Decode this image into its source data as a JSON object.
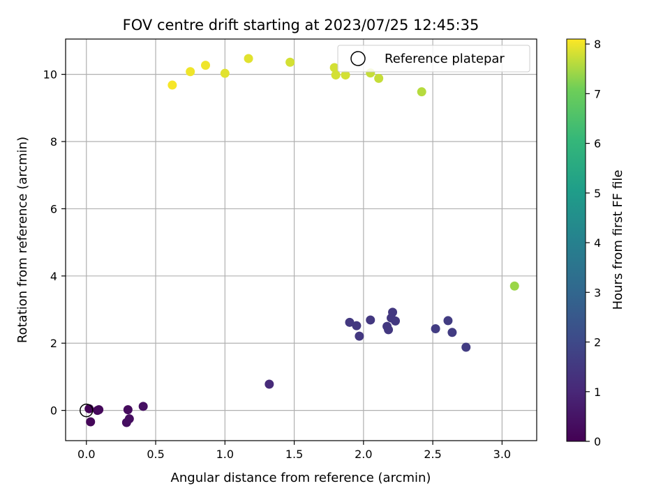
{
  "chart_data": {
    "type": "scatter",
    "title": "FOV centre drift starting at 2023/07/25 12:45:35",
    "xlabel": "Angular distance from reference (arcmin)",
    "ylabel": "Rotation from reference (arcmin)",
    "xlim": [
      -0.15,
      3.25
    ],
    "ylim": [
      -0.9,
      11.05
    ],
    "xticks": [
      "0.0",
      "0.5",
      "1.0",
      "1.5",
      "2.0",
      "2.5",
      "3.0"
    ],
    "yticks": [
      "0",
      "2",
      "4",
      "6",
      "8",
      "10"
    ],
    "grid": true,
    "legend": {
      "entries": [
        "Reference platepar"
      ],
      "placement": "top-right"
    },
    "reference_point": {
      "x": 0.0,
      "y": 0.0
    },
    "colorbar": {
      "label": "Hours from first FF file",
      "range": [
        0,
        8.1
      ],
      "ticks": [
        "0",
        "1",
        "2",
        "3",
        "4",
        "5",
        "6",
        "7",
        "8"
      ],
      "colormap": "viridis"
    },
    "points": [
      {
        "x": 0.02,
        "y": 0.05,
        "c": 0.05
      },
      {
        "x": 0.08,
        "y": 0.0,
        "c": 0.1
      },
      {
        "x": 0.03,
        "y": -0.34,
        "c": 0.15
      },
      {
        "x": 0.09,
        "y": 0.02,
        "c": 0.2
      },
      {
        "x": 0.3,
        "y": 0.02,
        "c": 0.25
      },
      {
        "x": 0.31,
        "y": -0.25,
        "c": 0.3
      },
      {
        "x": 0.29,
        "y": -0.36,
        "c": 0.35
      },
      {
        "x": 0.41,
        "y": 0.12,
        "c": 0.4
      },
      {
        "x": 1.32,
        "y": 0.78,
        "c": 1.1
      },
      {
        "x": 1.9,
        "y": 2.62,
        "c": 1.5
      },
      {
        "x": 1.95,
        "y": 2.52,
        "c": 1.5
      },
      {
        "x": 1.97,
        "y": 2.21,
        "c": 1.5
      },
      {
        "x": 2.05,
        "y": 2.69,
        "c": 1.5
      },
      {
        "x": 2.17,
        "y": 2.5,
        "c": 1.5
      },
      {
        "x": 2.18,
        "y": 2.4,
        "c": 1.5
      },
      {
        "x": 2.2,
        "y": 2.75,
        "c": 1.5
      },
      {
        "x": 2.21,
        "y": 2.92,
        "c": 1.5
      },
      {
        "x": 2.23,
        "y": 2.66,
        "c": 1.5
      },
      {
        "x": 2.52,
        "y": 2.43,
        "c": 1.6
      },
      {
        "x": 2.61,
        "y": 2.67,
        "c": 1.6
      },
      {
        "x": 2.64,
        "y": 2.32,
        "c": 1.6
      },
      {
        "x": 2.74,
        "y": 1.88,
        "c": 1.6
      },
      {
        "x": 3.09,
        "y": 3.7,
        "c": 7.4
      },
      {
        "x": 2.42,
        "y": 9.48,
        "c": 7.6
      },
      {
        "x": 2.11,
        "y": 9.88,
        "c": 7.7
      },
      {
        "x": 2.05,
        "y": 10.04,
        "c": 7.7
      },
      {
        "x": 1.87,
        "y": 9.98,
        "c": 7.8
      },
      {
        "x": 1.8,
        "y": 9.98,
        "c": 7.8
      },
      {
        "x": 1.79,
        "y": 10.2,
        "c": 7.8
      },
      {
        "x": 1.47,
        "y": 10.36,
        "c": 7.8
      },
      {
        "x": 1.17,
        "y": 10.47,
        "c": 7.9
      },
      {
        "x": 1.0,
        "y": 10.03,
        "c": 7.9
      },
      {
        "x": 0.86,
        "y": 10.27,
        "c": 8.0
      },
      {
        "x": 0.75,
        "y": 10.08,
        "c": 8.0
      },
      {
        "x": 0.62,
        "y": 9.68,
        "c": 8.05
      }
    ]
  }
}
